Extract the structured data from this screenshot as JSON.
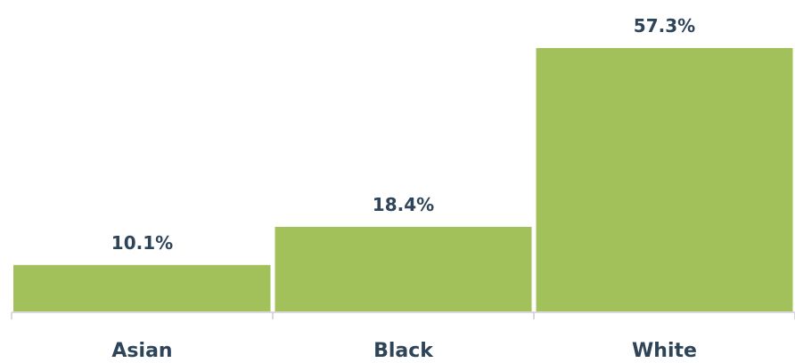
{
  "chart_data": {
    "type": "bar",
    "categories": [
      "Asian",
      "Black",
      "White"
    ],
    "values": [
      10.1,
      18.4,
      57.3
    ],
    "value_labels": [
      "10.1%",
      "18.4%",
      "57.3%"
    ],
    "unit": "%",
    "title": "",
    "xlabel": "",
    "ylabel": "",
    "grid": false,
    "legend": "none",
    "colors": {
      "bar": "#a3c15a",
      "text": "#2e4459",
      "axis": "#d9d9d9"
    }
  }
}
